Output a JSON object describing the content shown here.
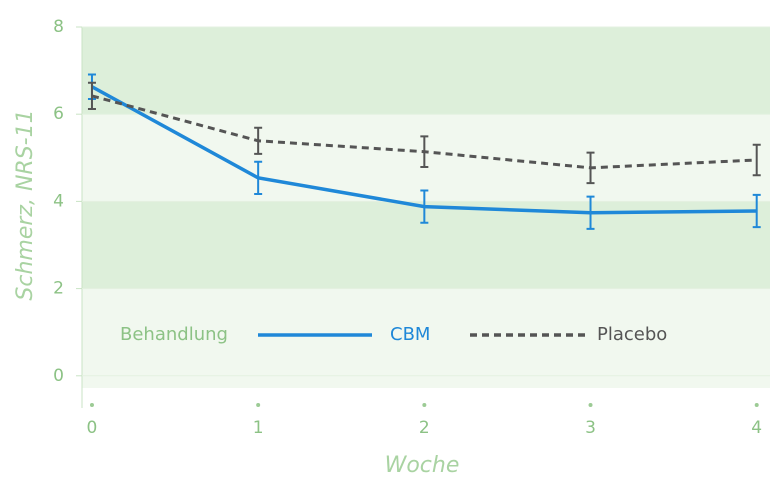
{
  "chart_data": {
    "type": "line",
    "x": [
      0,
      1,
      2,
      3,
      4
    ],
    "xlim": [
      -0.06,
      4.08
    ],
    "xticks": [
      0,
      1,
      2,
      3,
      4
    ],
    "ylim": [
      -0.28,
      8
    ],
    "yticks": [
      0,
      2,
      4,
      6,
      8
    ],
    "xlabel": "Woche",
    "ylabel": "Schmerz, NRS-11",
    "legend_title": "Behandlung",
    "series": [
      {
        "name": "CBM",
        "color": "#1f88d8",
        "dash": false,
        "values": [
          6.63,
          4.54,
          3.88,
          3.74,
          3.78
        ],
        "errors": [
          0.28,
          0.37,
          0.37,
          0.37,
          0.37
        ]
      },
      {
        "name": "Placebo",
        "color": "#555555",
        "dash": true,
        "values": [
          6.42,
          5.39,
          5.14,
          4.77,
          4.95
        ],
        "errors": [
          0.3,
          0.3,
          0.35,
          0.35,
          0.35
        ]
      }
    ]
  }
}
